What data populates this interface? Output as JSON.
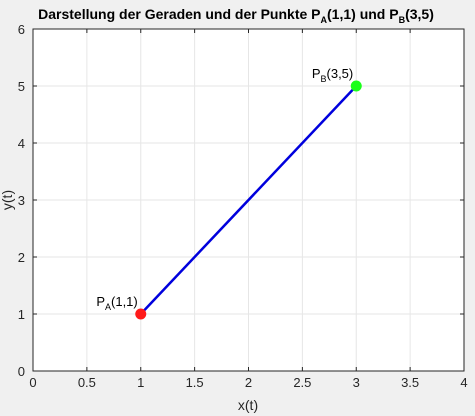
{
  "chart_data": {
    "type": "line",
    "title": {
      "main": "Darstellung der Geraden und der Punkte P",
      "sub_a": "A",
      "mid": "(1,1) und P",
      "sub_b": "B",
      "end": "(3,5)"
    },
    "xlabel": "x(t)",
    "ylabel": "y(t)",
    "xlim": [
      0,
      4
    ],
    "ylim": [
      0,
      6
    ],
    "xticks": [
      0,
      0.5,
      1,
      1.5,
      2,
      2.5,
      3,
      3.5,
      4
    ],
    "xtick_labels": [
      "0",
      "0.5",
      "1",
      "1.5",
      "2",
      "2.5",
      "3",
      "3.5",
      "4"
    ],
    "yticks": [
      0,
      1,
      2,
      3,
      4,
      5,
      6
    ],
    "ytick_labels": [
      "0",
      "1",
      "2",
      "3",
      "4",
      "5",
      "6"
    ],
    "grid": true,
    "series": [
      {
        "name": "Gerade",
        "x": [
          1,
          3
        ],
        "y": [
          1,
          5
        ],
        "color": "#0000dd"
      }
    ],
    "points": [
      {
        "name": "PA",
        "x": 1,
        "y": 1,
        "color": "#ff1a1a",
        "label": "P",
        "sub": "A",
        "coords": "(1,1)"
      },
      {
        "name": "PB",
        "x": 3,
        "y": 5,
        "color": "#1aff1a",
        "label": "P",
        "sub": "B",
        "coords": "(3,5)"
      }
    ]
  }
}
